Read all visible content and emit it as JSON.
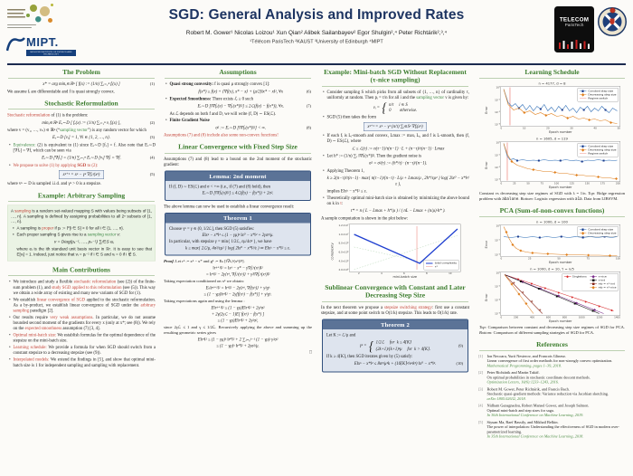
{
  "header": {
    "title": "SGD: General Analysis and Improved Rates",
    "authors": "Robert M. Gower¹      Nicolas Loizou¹      Xun Qian²      Alibek Sailanbayev²      Egor Shulgin²,⁴      Peter Richtárik²,³,⁴",
    "affiliations": "¹Télécom ParisTech    ²KAUST    ³University of Edinburgh    ⁴MIPT",
    "mipt_label": "MIPT.",
    "mipt_sub": "MOSCOW INSTITUTE OF PHYSICS AND TECHNOLOGY",
    "telecom_line1": "TELECOM",
    "telecom_line2": "ParisTech"
  },
  "col1": {
    "h_problem": "The Problem",
    "eq1": "x* = arg minₓ∈ℝⁿ [ f(x) := (1/n) ∑ᵢ₌₁ⁿ fᵢ(x) ]",
    "eq1_num": "(1)",
    "p_assume": "We assume fᵢ are differentiable and f is quasi strongly convex.",
    "h_reform": "Stochastic Reformulation",
    "p_reform_hl": "Stochastic reformulation",
    "p_reform_rest": " of (1) is the problem:",
    "eq2": "minₓ∈ℝⁿ Eᵥ∼D [ fᵥ(x) := (1/n) ∑ᵢ₌₁ⁿ vᵢ fᵢ(x) ],",
    "eq2_num": "(2)",
    "p_vector_a": "where v = (v₁, …, vₙ) ∈ ℝⁿ (“",
    "p_vector_hl": "sampling vector",
    "p_vector_b": "”) is any random vector for which",
    "eq3": "Eᵥ∼D [vᵢ] = 1,    ∀i ∈ {1, 2, …, n}.",
    "eq3_num": "(3)",
    "b_equiv_hl": "Equivalence:",
    "b_equiv_rest": " (2) is equivalent to (1) since Eᵥ∼D [fᵥ] = f. Also note that Eᵥ∼D [∇fᵥ] = ∇f, which can be seen via",
    "eq4": "Eᵥ∼D [∇fᵥ] = (1/n) ∑ᵢ₌₁ⁿ Eᵥ∼D [vᵢ] ∇fᵢ = ∇f.",
    "eq4_num": "(4)",
    "b_propose_a": "We propose to solve (1) by applying ",
    "b_propose_sgd": "SGD",
    "b_propose_b": " to (2):",
    "eq5": "xᵏ⁺¹ = xᵏ − γᵏ ∇fᵥᵏ(xᵏ)",
    "eq5_num": "(5)",
    "p_stepsize": "where vᵏ ∼ D is sampled i.i.d. and γᵏ > 0 is a stepsize.",
    "h_example": "Example: Arbitrary Sampling",
    "ex_p1_a": "A ",
    "ex_p1_hl": "sampling",
    "ex_p1_b": " is a random set-valued mapping S with values being subsets of {1, …, n}. A sampling is defined by assigning probabilities to all 2ⁿ subsets of {1, …, n}.",
    "ex_b1_a": "A sampling is ",
    "ex_b1_hl": "proper",
    "ex_b1_b": " if pᵢ := ℙ[i ∈ S] > 0 for all i ∈ {1, …, n}.",
    "ex_b2_a": "Each proper sampling S gives rise to a ",
    "ex_b2_hl": "sampling vector",
    "ex_b2_b": " v:",
    "ex_eq": "v = Diag(p₁⁻¹, …, pₙ⁻¹) ∑ᵢ∈S eᵢ,",
    "ex_b2_c": "where eᵢ is the ith standard unit basis vector in ℝⁿ. It is easy to see that E[vᵢ] = 1. Indeed, just notice that vᵢ = pᵢ⁻¹ if i ∈ S and vᵢ = 0 if i ∉ S.",
    "h_contrib": "Main Contributions",
    "contrib": [
      {
        "a": "We introduce and study a flexible ",
        "hl": "stochastic reformulation",
        "b": " (see (2)) of the finite-sum problem (1), and ",
        "hl2": "study SGD applied to this reformulation",
        "c": " (see (5)). This way we obtain a wide array of existing and many new variants of SGD for (1)."
      },
      {
        "a": "We establish ",
        "hl": "linear convergence of SGD",
        "b": " applied to the stochastic reformulation. As a by-product, we establish linear convergence of SGD under the ",
        "hl2": "arbitrary sampling",
        "c": " paradigm [2]."
      },
      {
        "a": "Our results require ",
        "hl": "very weak assumptions",
        "b": ". In particular, we do not assume bounded second moment of the gradients for every x (only at x*; see (8)). We rely on the ",
        "hl2": "expected smoothness",
        "c": " assumption (7) [3, 4]."
      },
      {
        "a": "",
        "hl": "Optimal mini-batch size:",
        "b": " We establish formulas for the optimal dependence of the stepsize on the mini-batch size.",
        "hl2": "",
        "c": ""
      },
      {
        "a": "",
        "hl": "Learning schedule:",
        "b": " We provide a formula for when SGD should switch from a constant stepsize to a decreasing stepsize (see (9)).",
        "hl2": "",
        "c": ""
      },
      {
        "a": "",
        "hl": "Interpolated models:",
        "b": " We extend the findings in [5], and show that optimal mini-batch size is 1 for independent sampling and sampling with replacement.",
        "hl2": "",
        "c": ""
      }
    ]
  },
  "col2": {
    "h_assumptions": "Assumptions",
    "a1_hl": "Quasi strong convexity:",
    "a1_rest": " f is quasi μ strongly convex [1]:",
    "eq6": "f(x*) ≥ f(x) + ⟨∇f(x), x* − x⟩ + (μ/2)‖x* − x‖²,  ∀x",
    "eq6_num": "(6)",
    "a2_hl": "Expected Smoothness:",
    "a2_rest": " There exists ℒ ≥ 0 such",
    "eq7": "Eᵥ∼D [‖∇fᵥ(x) − ∇fᵥ(x*)‖²] ≤ 2ℒ(f(x) − f(x*)),  ∀x.",
    "eq7_num": "(7)",
    "a2_note": "As ℒ depends on both f and D, we will write (f, D) ∼ ES(ℒ).",
    "a3_hl": "Finite Gradient Noise",
    "eq8": "σ² := Eᵥ∼D [‖∇fᵥ(x*)‖²] < ∞.",
    "eq8_num": "(8)",
    "p_nonconvex": "Assumptions (7) and (8) include also some non-convex functions!",
    "h_linear": "Linear Convergence with Fixed Step Size",
    "p_bound": "Assumptions (7) and (8) lead to a bound on the 2nd moment of the stochastic gradient:",
    "lemma_title": "Lemma: 2nd moment",
    "lemma_l1": "If (f, D) ∼ ES(ℒ) and σ < +∞ (i.e., if (7) and (8) hold), then",
    "lemma_l2": "Eᵥ∼D [‖∇fᵥ(x)‖²] ≤ 4ℒ(f(x) − f(x*)) + 2σ².",
    "p_lemma_after": "The above lemma can now be used to establish a linear convergence result:",
    "thm1_title": "Theorem 1",
    "thm1_l1": "Choose γᵏ = γ ∈ (0, 1/2ℒ], then SGD (5) satisfies:",
    "thm1_l2": "E‖xᵏ − x*‖² ≤ (1 − γμ)ᵏ ‖x⁰ − x*‖² + 2γσ²/μ.",
    "thm1_l3": "In particular, with stepsize γ = min{ 1/2ℒ, εμ/4σ² }, we have",
    "thm1_l4": "k ≥ max{ 2ℒ/μ, 4σ²/εμ² } log( 2‖x⁰ − x*‖²/ε )  ⇒  E‖xᵏ − x*‖² ≤ ε.",
    "proof_lead": "Proof.",
    "proof_l1": " Let rᵏ := xᵏ − x* and gᵏ := Eₖ [‖∇fᵥᵏ(xᵏ)‖²].",
    "proof_e1": "‖rᵏ⁺¹‖²  =  ‖xᵏ − x* − γ∇fᵥᵏ(xᵏ)‖²",
    "proof_e2": "=  ‖rᵏ‖² − 2γ⟨rᵏ, ∇fᵥᵏ(xᵏ)⟩ + γ²‖∇fᵥᵏ(xᵏ)‖²",
    "proof_l2": "Taking expectation conditioned on xᵏ we obtain:",
    "proof_e3": "Eₖ‖rᵏ⁺¹‖²  =  ‖rᵏ‖² − 2γ⟨rᵏ, ∇f(xᵏ)⟩ + γ²gᵏ",
    "proof_e4": "≤  (1 − γμ)‖rᵏ‖² − 2γ[f(xᵏ) − f(x*)] + γ²gᵏ.",
    "proof_l3": "Taking expectations again and using the lemma :",
    "proof_e5": "E‖rᵏ⁺¹‖² ≤ (1 − γμ)E‖rᵏ‖² + 2γ²σ²",
    "proof_e6": "+ 2γ(2γℒ − 1)E[ f(xᵏ) − f(x*) ]",
    "proof_e7": "≤ (1 − γμ)E‖rᵏ‖² + 2γ²σ²,",
    "proof_l4": "since 2γℒ ≤ 1 and γ ≤ 1/2ℒ. Recursively applying the above and summing up the resulting geometric series gives",
    "proof_e8": "E‖rᵏ‖² ≤ (1 − γμ)ᵏ ‖r⁰‖² + 2 ∑ⱼ₌₀ᵏ⁻¹ (1 − γμ)ʲ γ²σ²",
    "proof_e9": "≤ (1 − γμ)ᵏ ‖r⁰‖² + 2γσ²/μ.",
    "qed": "□"
  },
  "col3": {
    "h_example": "Example: Mini-batch SGD Without Replacement (τ-nice sampling)",
    "b1_a": "Consider sampling S which picks from all subsets of {1, …, n} of cardinality τ, uniformly at random. Then pᵢ = τ/n for all i and the ",
    "b1_hl": "sampling vector",
    "b1_b": " v is given by:",
    "case_lead": "vᵢ =",
    "brace": "{",
    "case1": "n/τ     i ∈ S",
    "case2": "0        otherwise.",
    "b2": "SGD (5) then takes the form",
    "eq_sgd": "xᵏ⁺¹ = xᵏ − γᵏ (n/τ) ∑ᵢ∈Sᵏ ∇fᵢ(xᵏ)",
    "b3": "If each fᵢ is Lᵢ-smooth and convex, Lmax := maxᵢ Lᵢ, and f is L-smooth, then (f, D) ∼ ES(ℒ), where",
    "eq_L": "ℒ ≤ ℒ(τ) := n(τ−1)/τ(n−1) · L + (n−τ)/τ(n−1) · Lmax",
    "b4": "Let h* := (1/n) ∑ᵢ ‖∇fᵢ(x*)‖². Then the gradient noise is",
    "eq_noise": "σ² = σ²(τ) := (h*/τ) · (n−τ)/(n−1).",
    "b5": "Applying Theorem 1,",
    "eq_k": "k ≥ 2(n−τ)/τ(n−1) · max{ n(τ−1)/(n−τ) · L/μ + Lmax/μ ,  2h*/εμ² } log( 2‖x⁰ − x*‖²/ε ),",
    "b5b": "implies E‖xᵏ − x*‖² ≤ ε.",
    "b6_a": "Theoretically optimal mini-batch size is obtained by minimizing the above bound on k in ",
    "b6_hl": "τ",
    "b6_b": ":",
    "eq_tau": "τ* = n ( L − Lmax + h*/μ ) / ( nL − Lmax + (n/μ)·h* ).",
    "p_plot": "A sample computation is shown in the plot below:",
    "fig": {
      "ylabel": "complexity",
      "xlabel": "mini-batch size",
      "yticks": [
        "1.2×10⁷",
        "1.0×10⁷",
        "8.0×10⁶",
        "6.0×10⁶",
        "4.0×10⁶",
        "2.0×10⁶"
      ],
      "xticks": [
        "2",
        "4",
        "6",
        "8",
        "10"
      ],
      "legend1": "total complexity",
      "legend2": "τ*"
    },
    "h_sublinear": "Sublinear Convergence with Constant and Later Decreasing Step Size",
    "p_sub_a": "In the next theorem we propose a ",
    "p_sub_hl": "stepsize switching strategy",
    "p_sub_b": ": first use a constant stepsize, and at some point switch to O(1/k) stepsize. This leads to O(1/k) rate.",
    "thm2_title": "Theorem 2",
    "thm2_l1": "Let K := ℒ/μ and",
    "thm2_case_lead": "γᵏ =",
    "thm2_case1": "1/2ℒ     for  k ≤ 4⌈K⌉",
    "thm2_case2": "(2k+1)/(k+1)²μ     for  k > 4⌈K⌉.",
    "thm2_case_num": "(9)",
    "thm2_l2": "If k ≥ 4⌈K⌉, then SGD iterates given by (5) satisfy:",
    "thm2_eq": "E‖xᵏ − x*‖² ≤ 8σ²/μ²k + (16⌈K⌉²/e²k²) ‖x⁰ − x*‖².",
    "thm2_eq_num": "(10)"
  },
  "col4": {
    "h_schedule": "Learning Schedule",
    "fig1": {
      "title": "n = 4177, d = 8",
      "ylabel": "Error",
      "xlabel": "Epoch number",
      "yticks": [
        "10⁰",
        "10⁻¹",
        "10⁻²",
        "10⁻³"
      ],
      "xticks": [
        "0",
        "10",
        "20",
        "30",
        "40",
        "50"
      ],
      "legend": [
        "Constant step size",
        "Decreasing step size",
        "Regime switch"
      ]
    },
    "fig2": {
      "title": "n = 1605, d = 119",
      "ylabel": "Error",
      "xlabel": "Epoch number",
      "yticks": [
        "10⁰",
        "10⁻¹",
        "10⁻²",
        "10⁻³"
      ],
      "xticks": [
        "0",
        "25",
        "50",
        "75",
        "100",
        "125",
        "150",
        "175",
        "200"
      ],
      "legend": [
        "Constant step size",
        "Decreasing step size",
        "Regime switch"
      ]
    },
    "cap1_a": "Constant vs decreasing step size regimes of SGD with λ = 1/n. ",
    "cap1_top": "Top:",
    "cap1_b": " Ridge regression problem with ",
    "cap1_mono1": "abalone",
    "cap1_c": ". ",
    "cap1_bot": "Bottom:",
    "cap1_d": " Logistic regression with ",
    "cap1_mono2": "a1a",
    "cap1_e": ". Data from LIBSVM.",
    "h_pca": "PCA (Sum-of-non-convex functions)",
    "fig3": {
      "title": "n = 1000, d = 100",
      "ylabel": "Error",
      "xlabel": "Epoch number",
      "yticks": [
        "10⁰",
        "10⁻¹",
        "10⁻²"
      ],
      "xticks": [
        "0",
        "25",
        "50",
        "75",
        "100"
      ],
      "legend": [
        "Constant step size",
        "Decreasing step size"
      ]
    },
    "fig4": {
      "title": "n = 1000, d = 10, τ = n/5",
      "ylabel": "Error",
      "xlabel": "Epoch number",
      "yticks": [
        "10⁰",
        "10⁻²",
        "10⁻⁴",
        "10⁻⁶"
      ],
      "xticks": [
        "0",
        "200",
        "400",
        "600",
        "800",
        "1000",
        "1200",
        "1400"
      ],
      "legend_col1": [
        "Singletons"
      ],
      "legend_col2": [
        "τ-nice",
        "τ-ind",
        "mb = τ*-ind",
        "mb = τ*-nice"
      ]
    },
    "cap2_top": "Top:",
    "cap2_a": " Comparison between constant and decreasing step size regimes of SGD for PCA. ",
    "cap2_bot": "Bottom:",
    "cap2_b": " Comparison of different sampling strategies of SGD for PCA.",
    "h_refs": "References",
    "refs": [
      {
        "num": "[1]",
        "authors": "Ion Necoara, Yurii Nesterov, and Francois Glineur.",
        "title": "Linear convergence of first order methods for non-strongly convex optimization.",
        "venue": "Mathematical Programming, pages 1–39, 2018."
      },
      {
        "num": "[2]",
        "authors": "Peter Richtárik and Martin Takáč.",
        "title": "On optimal probabilities in stochastic coordinate descent methods.",
        "venue": "Optimization Letters, 10(6):1233–1243, 2016."
      },
      {
        "num": "[3]",
        "authors": "Robert M. Gower, Peter Richtárik, and Francis Bach.",
        "title": "Stochastic quasi-gradient methods: Variance reduction via Jacobian sketching.",
        "venue": "arXiv:1805.02632, 2018."
      },
      {
        "num": "[4]",
        "authors": "Nidham Gazagnadou, Robert Mansel Gower, and Joseph Salmon.",
        "title": "Optimal mini-batch and step sizes for saga.",
        "venue": "In 36th International Conference on Machine Learning, 2019."
      },
      {
        "num": "[5]",
        "authors": "Siyuan Ma, Raef Bassily, and Mikhail Belkin.",
        "title": "The power of interpolation: Understanding the effectiveness of SGD in modern over-parametrized learning.",
        "venue": "In 35th International Conference on Machine Learning, 2018."
      }
    ]
  }
}
